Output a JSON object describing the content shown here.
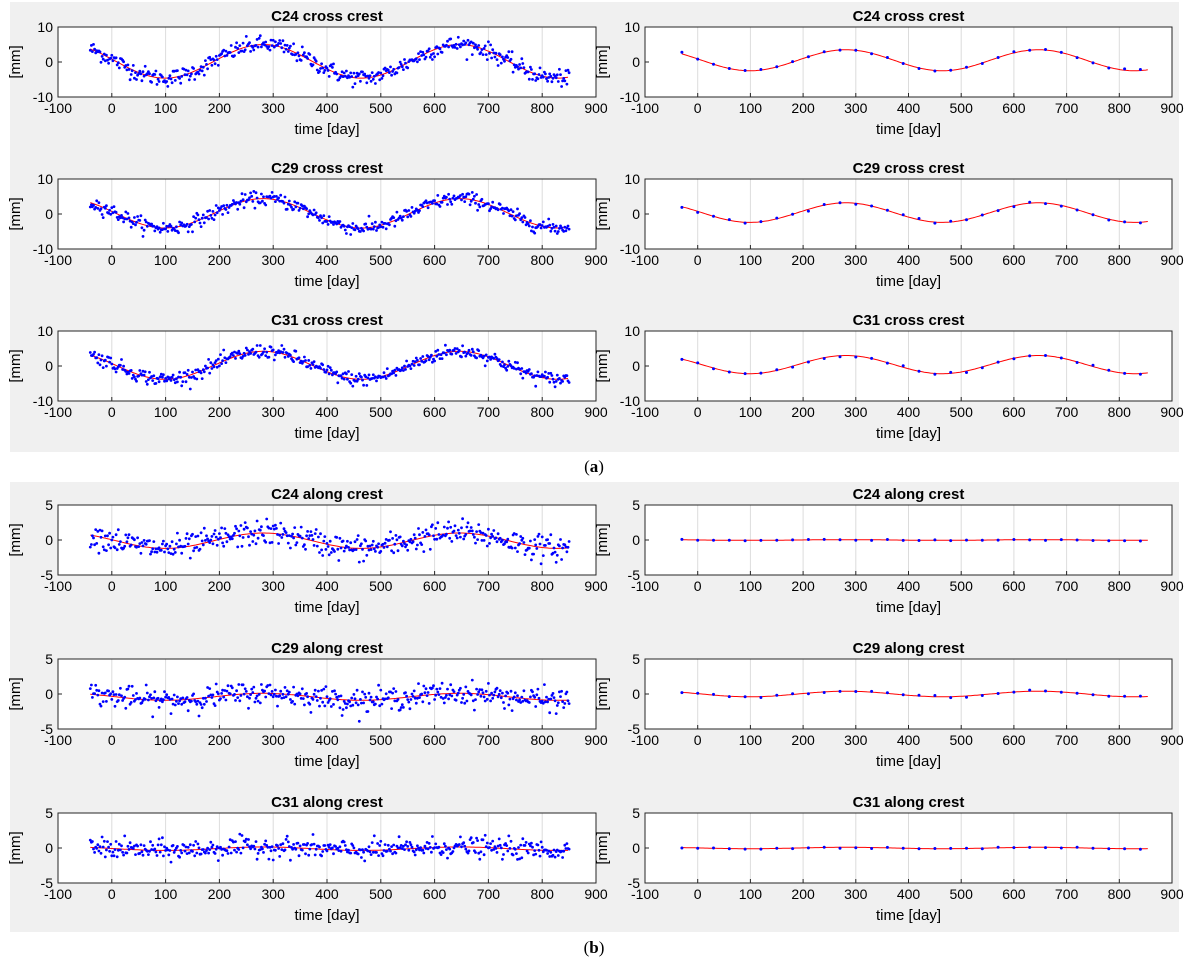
{
  "figure": {
    "background_color": "#f0f0f0",
    "marker_color": "#0000ff",
    "fit_color": "#ff0000",
    "grid_color": "#dcdcdc",
    "panel_labels": [
      {
        "open": "(",
        "letter": "a",
        "close": ")"
      },
      {
        "open": "(",
        "letter": "b",
        "close": ")"
      }
    ]
  },
  "chart_data": [
    {
      "type": "scatter",
      "title": "C24 cross crest",
      "xlabel": "time [day]",
      "ylabel": "[mm]",
      "xlim": [
        -100,
        900
      ],
      "ylim": [
        -10,
        10
      ],
      "xticks": [
        "-100",
        "0",
        "100",
        "200",
        "300",
        "400",
        "500",
        "600",
        "700",
        "800",
        "900"
      ],
      "yticks": [
        "-10",
        "0",
        "10"
      ],
      "grid": "vertical",
      "series": [
        {
          "style": "dense-points",
          "amplitude": 4.8,
          "offset": 0.2,
          "noise": 1.2,
          "x_start": -40,
          "x_end": 850
        }
      ]
    },
    {
      "type": "scatter",
      "title": "C24 cross crest",
      "xlabel": "time [day]",
      "ylabel": "[mm]",
      "xlim": [
        -100,
        900
      ],
      "ylim": [
        -10,
        10
      ],
      "xticks": [
        "-100",
        "0",
        "100",
        "200",
        "300",
        "400",
        "500",
        "600",
        "700",
        "800",
        "900"
      ],
      "yticks": [
        "-10",
        "0",
        "10"
      ],
      "grid": "vertical",
      "series": [
        {
          "style": "sparse-points",
          "amplitude": 3.0,
          "offset": 0.5,
          "noise": 0.3,
          "x_start": -30,
          "x_end": 855
        }
      ]
    },
    {
      "type": "scatter",
      "title": "C29 cross crest",
      "xlabel": "time [day]",
      "ylabel": "[mm]",
      "xlim": [
        -100,
        900
      ],
      "ylim": [
        -10,
        10
      ],
      "xticks": [
        "-100",
        "0",
        "100",
        "200",
        "300",
        "400",
        "500",
        "600",
        "700",
        "800",
        "900"
      ],
      "yticks": [
        "-10",
        "0",
        "10"
      ],
      "grid": "vertical",
      "series": [
        {
          "style": "dense-points",
          "amplitude": 4.2,
          "offset": 0.2,
          "noise": 1.0,
          "x_start": -40,
          "x_end": 850
        }
      ]
    },
    {
      "type": "scatter",
      "title": "C29 cross crest",
      "xlabel": "time [day]",
      "ylabel": "[mm]",
      "xlim": [
        -100,
        900
      ],
      "ylim": [
        -10,
        10
      ],
      "xticks": [
        "-100",
        "0",
        "100",
        "200",
        "300",
        "400",
        "500",
        "600",
        "700",
        "800",
        "900"
      ],
      "yticks": [
        "-10",
        "0",
        "10"
      ],
      "grid": "vertical",
      "series": [
        {
          "style": "sparse-points",
          "amplitude": 2.8,
          "offset": 0.4,
          "noise": 0.3,
          "x_start": -30,
          "x_end": 855
        }
      ]
    },
    {
      "type": "scatter",
      "title": "C31 cross crest",
      "xlabel": "time [day]",
      "ylabel": "[mm]",
      "xlim": [
        -100,
        900
      ],
      "ylim": [
        -10,
        10
      ],
      "xticks": [
        "-100",
        "0",
        "100",
        "200",
        "300",
        "400",
        "500",
        "600",
        "700",
        "800",
        "900"
      ],
      "yticks": [
        "-10",
        "0",
        "10"
      ],
      "grid": "vertical",
      "series": [
        {
          "style": "dense-points",
          "amplitude": 4.0,
          "offset": 0.2,
          "noise": 1.0,
          "x_start": -40,
          "x_end": 850
        }
      ]
    },
    {
      "type": "scatter",
      "title": "C31 cross crest",
      "xlabel": "time [day]",
      "ylabel": "[mm]",
      "xlim": [
        -100,
        900
      ],
      "ylim": [
        -10,
        10
      ],
      "xticks": [
        "-100",
        "0",
        "100",
        "200",
        "300",
        "400",
        "500",
        "600",
        "700",
        "800",
        "900"
      ],
      "yticks": [
        "-10",
        "0",
        "10"
      ],
      "grid": "vertical",
      "series": [
        {
          "style": "sparse-points",
          "amplitude": 2.6,
          "offset": 0.4,
          "noise": 0.3,
          "x_start": -30,
          "x_end": 855
        }
      ]
    },
    {
      "type": "scatter",
      "title": "C24 along crest",
      "xlabel": "time [day]",
      "ylabel": "[mm]",
      "xlim": [
        -100,
        900
      ],
      "ylim": [
        -5,
        5
      ],
      "xticks": [
        "-100",
        "0",
        "100",
        "200",
        "300",
        "400",
        "500",
        "600",
        "700",
        "800",
        "900"
      ],
      "yticks": [
        "-5",
        "0",
        "5"
      ],
      "grid": "vertical",
      "series": [
        {
          "style": "dense-points",
          "amplitude": 1.1,
          "offset": -0.1,
          "noise": 0.9,
          "x_start": -40,
          "x_end": 850
        }
      ]
    },
    {
      "type": "scatter",
      "title": "C24 along crest",
      "xlabel": "time [day]",
      "ylabel": "[mm]",
      "xlim": [
        -100,
        900
      ],
      "ylim": [
        -5,
        5
      ],
      "xticks": [
        "-100",
        "0",
        "100",
        "200",
        "300",
        "400",
        "500",
        "600",
        "700",
        "800",
        "900"
      ],
      "yticks": [
        "-5",
        "0",
        "5"
      ],
      "grid": "vertical",
      "series": [
        {
          "style": "sparse-points",
          "amplitude": 0.05,
          "offset": 0.0,
          "noise": 0.08,
          "x_start": -30,
          "x_end": 855
        }
      ]
    },
    {
      "type": "scatter",
      "title": "C29 along crest",
      "xlabel": "time [day]",
      "ylabel": "[mm]",
      "xlim": [
        -100,
        900
      ],
      "ylim": [
        -5,
        5
      ],
      "xticks": [
        "-100",
        "0",
        "100",
        "200",
        "300",
        "400",
        "500",
        "600",
        "700",
        "800",
        "900"
      ],
      "yticks": [
        "-5",
        "0",
        "5"
      ],
      "grid": "vertical",
      "series": [
        {
          "style": "dense-points",
          "amplitude": 0.5,
          "offset": -0.4,
          "noise": 0.8,
          "x_start": -40,
          "x_end": 850
        }
      ]
    },
    {
      "type": "scatter",
      "title": "C29 along crest",
      "xlabel": "time [day]",
      "ylabel": "[mm]",
      "xlim": [
        -100,
        900
      ],
      "ylim": [
        -5,
        5
      ],
      "xticks": [
        "-100",
        "0",
        "100",
        "200",
        "300",
        "400",
        "500",
        "600",
        "700",
        "800",
        "900"
      ],
      "yticks": [
        "-5",
        "0",
        "5"
      ],
      "grid": "vertical",
      "series": [
        {
          "style": "sparse-points",
          "amplitude": 0.4,
          "offset": 0.0,
          "noise": 0.15,
          "x_start": -30,
          "x_end": 855
        }
      ]
    },
    {
      "type": "scatter",
      "title": "C31 along crest",
      "xlabel": "time [day]",
      "ylabel": "[mm]",
      "xlim": [
        -100,
        900
      ],
      "ylim": [
        -5,
        5
      ],
      "xticks": [
        "-100",
        "0",
        "100",
        "200",
        "300",
        "400",
        "500",
        "600",
        "700",
        "800",
        "900"
      ],
      "yticks": [
        "-5",
        "0",
        "5"
      ],
      "grid": "vertical",
      "series": [
        {
          "style": "dense-points",
          "amplitude": 0.25,
          "offset": -0.1,
          "noise": 0.7,
          "x_start": -40,
          "x_end": 850
        }
      ]
    },
    {
      "type": "scatter",
      "title": "C31 along crest",
      "xlabel": "time [day]",
      "ylabel": "[mm]",
      "xlim": [
        -100,
        900
      ],
      "ylim": [
        -5,
        5
      ],
      "xticks": [
        "-100",
        "0",
        "100",
        "200",
        "300",
        "400",
        "500",
        "600",
        "700",
        "800",
        "900"
      ],
      "yticks": [
        "-5",
        "0",
        "5"
      ],
      "grid": "vertical",
      "series": [
        {
          "style": "sparse-points",
          "amplitude": 0.1,
          "offset": 0.0,
          "noise": 0.08,
          "x_start": -30,
          "x_end": 855
        }
      ]
    }
  ]
}
